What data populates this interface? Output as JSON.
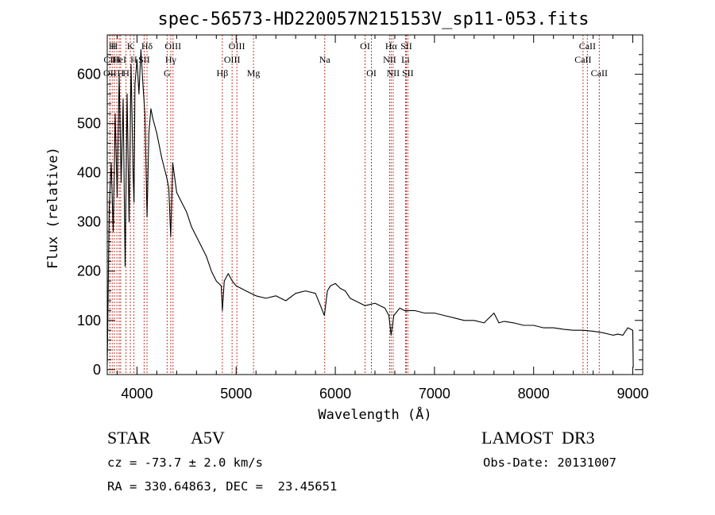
{
  "chart_data": {
    "type": "line",
    "title": "spec-56573-HD220057N215153V_sp11-053.fits",
    "xlabel": "Wavelength (Å)",
    "ylabel": "Flux (relative)",
    "xlim": [
      3700,
      9100
    ],
    "ylim": [
      -10,
      680
    ],
    "xticks": [
      4000,
      5000,
      6000,
      7000,
      8000,
      9000
    ],
    "yticks": [
      0,
      100,
      200,
      300,
      400,
      500,
      600
    ],
    "series": [
      {
        "name": "flux",
        "x": [
          3700,
          3720,
          3740,
          3760,
          3780,
          3800,
          3820,
          3840,
          3860,
          3880,
          3900,
          3920,
          3940,
          3960,
          3970,
          3980,
          4000,
          4020,
          4040,
          4060,
          4080,
          4101,
          4120,
          4140,
          4160,
          4200,
          4250,
          4300,
          4320,
          4340,
          4360,
          4380,
          4400,
          4450,
          4500,
          4550,
          4600,
          4650,
          4700,
          4750,
          4800,
          4850,
          4861,
          4880,
          4920,
          4960,
          5000,
          5050,
          5100,
          5150,
          5200,
          5300,
          5400,
          5500,
          5600,
          5700,
          5800,
          5850,
          5890,
          5920,
          5950,
          6000,
          6050,
          6100,
          6150,
          6200,
          6300,
          6400,
          6500,
          6540,
          6563,
          6590,
          6650,
          6700,
          6800,
          6900,
          7000,
          7100,
          7200,
          7300,
          7400,
          7500,
          7600,
          7650,
          7700,
          7800,
          7900,
          8000,
          8100,
          8200,
          8300,
          8400,
          8500,
          8600,
          8700,
          8800,
          8850,
          8900,
          8950,
          9000,
          9005
        ],
        "y": [
          10,
          330,
          420,
          280,
          520,
          350,
          600,
          380,
          550,
          210,
          560,
          300,
          620,
          400,
          340,
          580,
          630,
          560,
          650,
          580,
          520,
          310,
          480,
          530,
          510,
          480,
          430,
          390,
          370,
          270,
          420,
          390,
          360,
          340,
          320,
          290,
          270,
          250,
          230,
          200,
          180,
          170,
          120,
          180,
          195,
          180,
          170,
          165,
          160,
          155,
          150,
          145,
          150,
          140,
          155,
          160,
          155,
          130,
          110,
          160,
          170,
          175,
          165,
          160,
          145,
          140,
          130,
          135,
          125,
          110,
          70,
          110,
          125,
          120,
          120,
          115,
          115,
          110,
          105,
          100,
          100,
          95,
          115,
          95,
          98,
          95,
          90,
          90,
          85,
          85,
          82,
          80,
          80,
          78,
          75,
          70,
          72,
          70,
          85,
          80,
          5
        ]
      }
    ],
    "emission_lines": [
      {
        "label": "Hβ",
        "wl": 4861,
        "row": 2
      },
      {
        "label": "Hγ",
        "wl": 4340,
        "row": 1
      },
      {
        "label": "Hδ",
        "wl": 4101,
        "row": 0
      },
      {
        "label": "Hα",
        "wl": 6563,
        "row": 0
      },
      {
        "label": "K",
        "wl": 3933,
        "row": 0
      },
      {
        "label": "H",
        "wl": 3968,
        "row": 1
      },
      {
        "label": "G",
        "wl": 4304,
        "row": 2
      },
      {
        "label": "Mg",
        "wl": 5175,
        "row": 2
      },
      {
        "label": "Na",
        "wl": 5893,
        "row": 1
      },
      {
        "label": "OIII",
        "wl": 4363,
        "row": 0
      },
      {
        "label": "OIII",
        "wl": 4959,
        "row": 1
      },
      {
        "label": "OIII",
        "wl": 5007,
        "row": 0
      },
      {
        "label": "OI",
        "wl": 6300,
        "row": 0
      },
      {
        "label": "OI",
        "wl": 6364,
        "row": 2
      },
      {
        "label": "NII",
        "wl": 6548,
        "row": 1
      },
      {
        "label": "NII",
        "wl": 6583,
        "row": 2
      },
      {
        "label": "SII",
        "wl": 6716,
        "row": 0
      },
      {
        "label": "SII",
        "wl": 6731,
        "row": 2
      },
      {
        "label": "Li",
        "wl": 6708,
        "row": 1
      },
      {
        "label": "CaII",
        "wl": 8498,
        "row": 1
      },
      {
        "label": "CaII",
        "wl": 8542,
        "row": 0
      },
      {
        "label": "CaII",
        "wl": 8662,
        "row": 2
      },
      {
        "label": "H",
        "wl": 3750,
        "row": 0
      },
      {
        "label": "H",
        "wl": 3771,
        "row": 0
      },
      {
        "label": "CII",
        "wl": 3727,
        "row": 1
      },
      {
        "label": "OII",
        "wl": 3727,
        "row": 2
      },
      {
        "label": "H",
        "wl": 3797,
        "row": 1
      },
      {
        "label": "HeI",
        "wl": 3820,
        "row": 1
      },
      {
        "label": "H",
        "wl": 3889,
        "row": 2
      },
      {
        "label": "SII",
        "wl": 4072,
        "row": 1
      },
      {
        "label": "H",
        "wl": 3835,
        "row": 2
      }
    ]
  },
  "info": {
    "type": "STAR",
    "subclass": "A5V",
    "survey": "LAMOST  DR3",
    "cz": "cz = -73.7 ± 2.0 km/s",
    "obsdate": "Obs-Date: 20131007",
    "radec": "RA = 330.64863, DEC =  23.45651"
  },
  "colors": {
    "line": "#000000",
    "marker": "#c0392b"
  }
}
